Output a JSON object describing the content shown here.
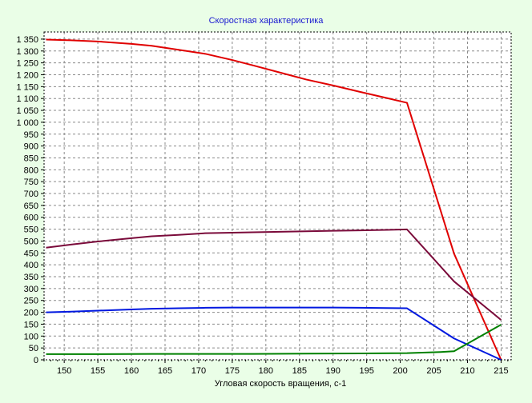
{
  "chart_data": {
    "type": "line",
    "title": "Скоростная характеристика",
    "xlabel": "Угловая скорость вращения, с-1",
    "ylabel": "",
    "xlim": [
      147,
      216.5
    ],
    "ylim": [
      0,
      1380
    ],
    "xticks": [
      150,
      155,
      160,
      165,
      170,
      175,
      180,
      185,
      190,
      195,
      200,
      205,
      210,
      215
    ],
    "yticks": [
      0,
      50,
      100,
      150,
      200,
      250,
      300,
      350,
      400,
      450,
      500,
      550,
      600,
      650,
      700,
      750,
      800,
      850,
      900,
      950,
      1000,
      1050,
      1100,
      1150,
      1200,
      1250,
      1300,
      1350
    ],
    "xtick_labels": [
      "150",
      "155",
      "160",
      "165",
      "170",
      "175",
      "180",
      "185",
      "190",
      "195",
      "200",
      "205",
      "210",
      "215"
    ],
    "ytick_labels": [
      "0",
      "50",
      "100",
      "150",
      "200",
      "250",
      "300",
      "350",
      "400",
      "450",
      "500",
      "550",
      "600",
      "650",
      "700",
      "750",
      "800",
      "850",
      "900",
      "950",
      "1 000",
      "1 050",
      "1 100",
      "1 150",
      "1 200",
      "1 250",
      "1 300",
      "1 350"
    ],
    "grid": true,
    "series": [
      {
        "color": "#e00000",
        "x": [
          147.3,
          151,
          155,
          160,
          163,
          167,
          171,
          175,
          178,
          182,
          186,
          190,
          194,
          198,
          201,
          208,
          215
        ],
        "y": [
          1348,
          1345,
          1340,
          1330,
          1322,
          1305,
          1288,
          1262,
          1240,
          1210,
          1180,
          1155,
          1128,
          1102,
          1082,
          447,
          0
        ]
      },
      {
        "color": "#7a0a3a",
        "x": [
          147.3,
          151,
          155,
          160,
          163,
          167,
          171,
          175,
          178,
          182,
          186,
          190,
          194,
          198,
          201,
          208,
          215
        ],
        "y": [
          472,
          485,
          498,
          512,
          520,
          526,
          533,
          535,
          537,
          539,
          541,
          543,
          545,
          547,
          549,
          330,
          168
        ]
      },
      {
        "color": "#0018e0",
        "x": [
          147.3,
          151,
          155,
          160,
          163,
          167,
          171,
          175,
          178,
          182,
          186,
          190,
          194,
          198,
          201,
          208,
          215
        ],
        "y": [
          200,
          203,
          207,
          212,
          215,
          217,
          219,
          220,
          220,
          220,
          220,
          220,
          219,
          218,
          217,
          90,
          0
        ]
      },
      {
        "color": "#008000",
        "x": [
          147.3,
          155,
          163,
          171,
          178,
          186,
          194,
          201,
          206,
          208,
          215
        ],
        "y": [
          24,
          24,
          25,
          25,
          25,
          26,
          27,
          28,
          33,
          36,
          148
        ]
      }
    ]
  }
}
